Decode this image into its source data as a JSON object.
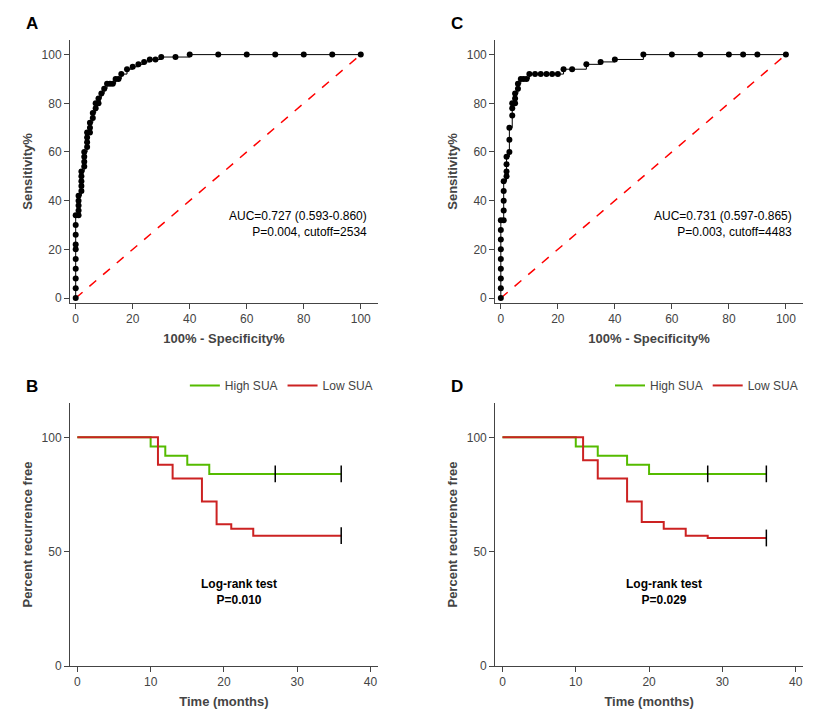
{
  "chart_data": [
    {
      "type": "line",
      "title": "A",
      "x_label": "100% - Specificity%",
      "y_label": "Sensitivity%",
      "annotations": [
        "AUC=0.727 (0.593-0.860)",
        "P=0.004, cutoff=2534"
      ],
      "series": [
        {
          "color": "#ff0000",
          "line_style": "dashed",
          "x": [
            0,
            100
          ],
          "values": [
            0,
            100
          ]
        },
        {
          "color": "#000000",
          "line_style": "step",
          "marker": "circle",
          "x": [
            0,
            0,
            0,
            0,
            0,
            0,
            0,
            0,
            0,
            0,
            1,
            1,
            1,
            1,
            1,
            2,
            2,
            2,
            2,
            2,
            3,
            3,
            3,
            3,
            4,
            4,
            4,
            4,
            5,
            5,
            5,
            6,
            6,
            7,
            7,
            8,
            8,
            9,
            10,
            11,
            12,
            13,
            14,
            15,
            16,
            18,
            20,
            22,
            24,
            26,
            28,
            30,
            35,
            40,
            50,
            60,
            70,
            80,
            90,
            100
          ],
          "values": [
            0,
            4,
            8,
            12,
            16,
            20,
            22,
            26,
            30,
            34,
            34,
            36,
            38,
            40,
            42,
            44,
            46,
            48,
            50,
            52,
            54,
            56,
            58,
            60,
            62,
            64,
            66,
            68,
            68,
            70,
            72,
            74,
            76,
            78,
            80,
            80,
            82,
            84,
            86,
            88,
            88,
            88,
            90,
            90,
            92,
            94,
            95,
            96,
            97,
            98,
            98,
            99,
            99,
            100,
            100,
            100,
            100,
            100,
            100,
            100
          ]
        }
      ],
      "xlim": [
        -2,
        106
      ],
      "ylim": [
        -2,
        106
      ],
      "xticks": [
        0,
        20,
        40,
        60,
        80,
        100
      ],
      "yticks": [
        0,
        20,
        40,
        60,
        80,
        100
      ],
      "grid": false
    },
    {
      "type": "line",
      "title": "C",
      "x_label": "100% - Specificity%",
      "y_label": "Sensitivity%",
      "annotations": [
        "AUC=0.731 (0.597-0.865)",
        "P=0.003, cutoff=4483"
      ],
      "series": [
        {
          "color": "#ff0000",
          "line_style": "dashed",
          "x": [
            0,
            100
          ],
          "values": [
            0,
            100
          ]
        },
        {
          "color": "#000000",
          "line_style": "step",
          "marker": "circle",
          "x": [
            0,
            0,
            0,
            0,
            0,
            0,
            0,
            0,
            0,
            1,
            1,
            1,
            1,
            1,
            2,
            2,
            2,
            2,
            3,
            3,
            3,
            4,
            4,
            4,
            5,
            5,
            5,
            6,
            6,
            7,
            8,
            9,
            10,
            12,
            14,
            16,
            18,
            20,
            22,
            25,
            30,
            35,
            40,
            50,
            60,
            70,
            80,
            85,
            90,
            100
          ],
          "values": [
            0,
            4,
            8,
            12,
            16,
            20,
            24,
            28,
            32,
            32,
            36,
            40,
            44,
            48,
            50,
            52,
            55,
            58,
            60,
            65,
            70,
            75,
            78,
            80,
            80,
            82,
            84,
            86,
            88,
            90,
            90,
            90,
            92,
            92,
            92,
            92,
            92,
            92,
            94,
            94,
            96,
            97,
            98,
            100,
            100,
            100,
            100,
            100,
            100,
            100
          ]
        }
      ],
      "xlim": [
        -2,
        106
      ],
      "ylim": [
        -2,
        106
      ],
      "xticks": [
        0,
        20,
        40,
        60,
        80,
        100
      ],
      "yticks": [
        0,
        20,
        40,
        60,
        80,
        100
      ],
      "grid": false
    },
    {
      "type": "line",
      "title": "B",
      "x_label": "Time (months)",
      "y_label": "Percent recurrence free",
      "annotations": [
        "Log-rank test",
        "P=0.010"
      ],
      "series": [
        {
          "name": "High SUA",
          "color": "#55bb00",
          "line_style": "solid",
          "x": [
            0,
            10,
            10,
            12,
            12,
            15,
            15,
            18,
            18,
            27,
            27,
            36
          ],
          "values": [
            100,
            100,
            96,
            96,
            92,
            92,
            88,
            88,
            84,
            84,
            84,
            84
          ],
          "censor_x": [
            27,
            36
          ],
          "censor_y": [
            84,
            84
          ]
        },
        {
          "name": "Low SUA",
          "color": "#cc2222",
          "line_style": "solid",
          "x": [
            0,
            11,
            11,
            13,
            13,
            17,
            17,
            19,
            19,
            21,
            21,
            24,
            24,
            27,
            27,
            36
          ],
          "values": [
            100,
            100,
            88,
            88,
            82,
            82,
            72,
            72,
            62,
            62,
            60,
            60,
            57,
            57,
            57,
            57
          ],
          "censor_x": [
            36
          ],
          "censor_y": [
            57
          ]
        }
      ],
      "xlim": [
        -1,
        41
      ],
      "ylim": [
        0,
        115
      ],
      "xticks": [
        0,
        10,
        20,
        30,
        40
      ],
      "yticks": [
        0,
        50,
        100
      ],
      "legend": "top",
      "grid": false
    },
    {
      "type": "line",
      "title": "D",
      "x_label": "Time (months)",
      "y_label": "Percent recurrence free",
      "annotations": [
        "Log-rank test",
        "P=0.029"
      ],
      "series": [
        {
          "name": "High SUA",
          "color": "#55bb00",
          "line_style": "solid",
          "x": [
            0,
            10,
            10,
            13,
            13,
            17,
            17,
            20,
            20,
            28,
            28,
            36
          ],
          "values": [
            100,
            100,
            96,
            96,
            92,
            92,
            88,
            88,
            84,
            84,
            84,
            84
          ],
          "censor_x": [
            28,
            36
          ],
          "censor_y": [
            84,
            84
          ]
        },
        {
          "name": "Low SUA",
          "color": "#cc2222",
          "line_style": "solid",
          "x": [
            0,
            11,
            11,
            13,
            13,
            17,
            17,
            19,
            19,
            22,
            22,
            25,
            25,
            28,
            28,
            36
          ],
          "values": [
            100,
            100,
            90,
            90,
            82,
            82,
            72,
            72,
            63,
            63,
            60,
            60,
            57,
            57,
            56,
            56
          ],
          "censor_x": [
            36
          ],
          "censor_y": [
            56
          ]
        }
      ],
      "xlim": [
        -1,
        41
      ],
      "ylim": [
        0,
        115
      ],
      "xticks": [
        0,
        10,
        20,
        30,
        40
      ],
      "yticks": [
        0,
        50,
        100
      ],
      "legend": "top",
      "grid": false
    }
  ]
}
